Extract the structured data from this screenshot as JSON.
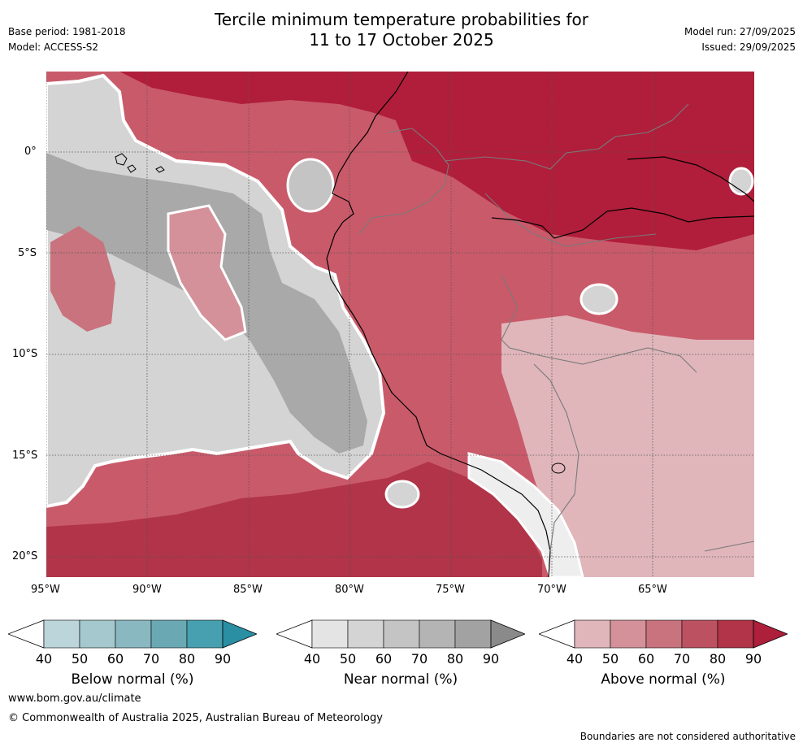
{
  "header": {
    "title_line1": "Tercile minimum temperature probabilities for",
    "title_line2": "11 to 17 October 2025",
    "base_period": "Base period: 1981-2018",
    "model": "Model: ACCESS-S2",
    "model_run": "Model run: 27/09/2025",
    "issued": "Issued: 29/09/2025"
  },
  "map": {
    "lat_labels": [
      "0°",
      "5°S",
      "10°S",
      "15°S",
      "20°S"
    ],
    "lon_labels": [
      "95°W",
      "90°W",
      "85°W",
      "80°W",
      "75°W",
      "70°W",
      "65°W"
    ]
  },
  "colorbars": [
    {
      "label": "Below normal (%)",
      "ticks": [
        "40",
        "50",
        "60",
        "70",
        "80",
        "90"
      ],
      "colors": [
        "#ffffff",
        "#bcd5da",
        "#a5c8ce",
        "#89b8c1",
        "#6aa9b4",
        "#47a0b0",
        "#2a8fa3"
      ]
    },
    {
      "label": "Near normal (%)",
      "ticks": [
        "40",
        "50",
        "60",
        "70",
        "80",
        "90"
      ],
      "colors": [
        "#ffffff",
        "#e4e4e4",
        "#d4d4d4",
        "#c4c4c4",
        "#b4b4b4",
        "#a2a2a2",
        "#8a8a8a"
      ]
    },
    {
      "label": "Above normal (%)",
      "ticks": [
        "40",
        "50",
        "60",
        "70",
        "80",
        "90"
      ],
      "colors": [
        "#ffffff",
        "#e0b6bb",
        "#d4919a",
        "#c8737e",
        "#bc5261",
        "#b13448",
        "#ad1f3b"
      ]
    }
  ],
  "footer": {
    "url": "www.bom.gov.au/climate",
    "copyright": "© Commonwealth of Australia 2025, Australian Bureau of Meteorology",
    "disclaimer": "Boundaries are not considered authoritative"
  }
}
